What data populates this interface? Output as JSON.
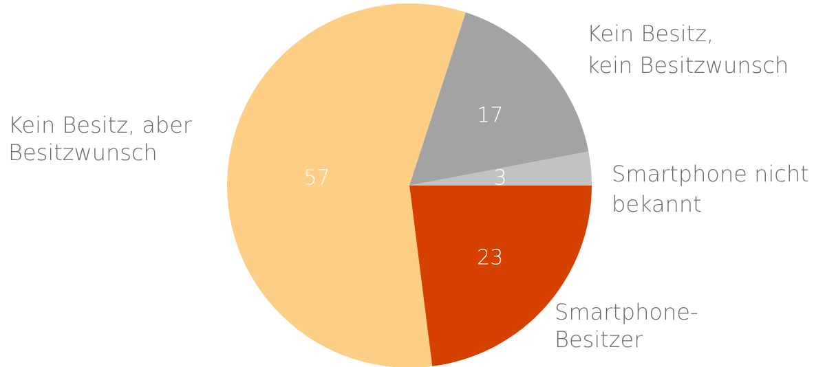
{
  "chart_data": {
    "type": "pie",
    "slices": [
      {
        "label_lines": [
          "Smartphone-",
          "Besitzer"
        ],
        "value": 23,
        "value_label": "23",
        "color": "#d64000"
      },
      {
        "label_lines": [
          "Kein Besitz, aber",
          "Besitzwunsch"
        ],
        "value": 57,
        "value_label": "57",
        "color": "#fdce86"
      },
      {
        "label_lines": [
          "Kein Besitz,",
          "kein Besitzwunsch"
        ],
        "value": 17,
        "value_label": "17",
        "color": "#a3a3a3"
      },
      {
        "label_lines": [
          "Smartphone nicht",
          "bekannt"
        ],
        "value": 3,
        "value_label": "3",
        "color": "#c2c2c2"
      }
    ],
    "start_angle_deg": 90,
    "direction": "clockwise",
    "title": ""
  }
}
